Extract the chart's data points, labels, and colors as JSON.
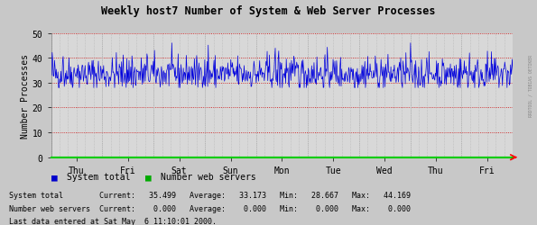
{
  "title": "Weekly host7 Number of System & Web Server Processes",
  "ylabel": "Number Processes",
  "ylim": [
    0,
    50
  ],
  "yticks": [
    0,
    10,
    20,
    30,
    40,
    50
  ],
  "bg_color": "#c8c8c8",
  "plot_bg_color": "#d8d8d8",
  "grid_major_color": "#cc0000",
  "grid_minor_color": "#aaaaaa",
  "line_color": "#0000dd",
  "axis_bottom_color": "#00cc00",
  "x_day_labels": [
    "Thu",
    "Fri",
    "Sat",
    "Sun",
    "Mon",
    "Tue",
    "Wed",
    "Thu",
    "Fri"
  ],
  "legend_system_total_color": "#0000cc",
  "legend_web_servers_color": "#00aa00",
  "n_points": 800,
  "signal_mean": 33.5,
  "signal_std": 3.5,
  "watermark": "RRDTOOL / TOBIAS OETIKER",
  "stats_line1": "System total        Current:   35.499   Average:   33.173   Min:   28.667   Max:   44.169",
  "stats_line2": "Number web servers  Current:    0.000   Average:    0.000   Min:    0.000   Max:    0.000",
  "last_data_text": "Last data entered at Sat May  6 11:10:01 2000.",
  "n_days": 9
}
